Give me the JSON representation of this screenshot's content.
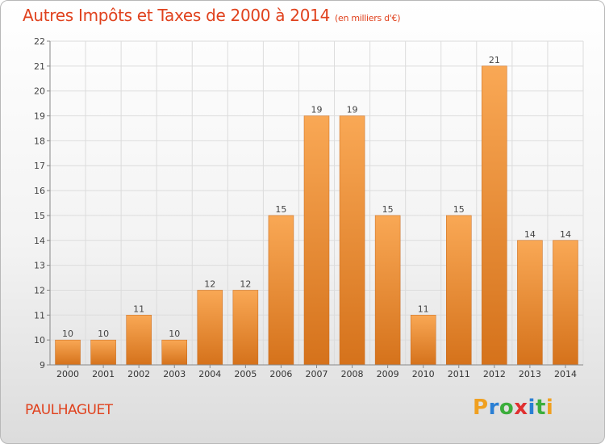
{
  "title": "Autres Impôts et Taxes de 2000 à 2014",
  "title_unit": "(en milliers d'€)",
  "town": "PAULHAGUET",
  "brand": {
    "letters": [
      "P",
      "r",
      "o",
      "x",
      "i",
      "t",
      "i"
    ],
    "colors": [
      "#f0a020",
      "#2a7fd4",
      "#3cae3c",
      "#e03030",
      "#2a7fd4",
      "#3cae3c",
      "#f0a020"
    ]
  },
  "colors": {
    "accent": "#e0421e",
    "bar_light": "#f8a550",
    "bar_dark": "#d6741c"
  },
  "chart_data": {
    "type": "bar",
    "categories": [
      "2000",
      "2001",
      "2002",
      "2003",
      "2004",
      "2005",
      "2006",
      "2007",
      "2008",
      "2009",
      "2010",
      "2011",
      "2012",
      "2013",
      "2014"
    ],
    "values": [
      10,
      10,
      11,
      10,
      12,
      12,
      15,
      19,
      19,
      15,
      11,
      15,
      21,
      14,
      14
    ],
    "ylim": [
      9,
      22
    ],
    "yticks": [
      9,
      10,
      11,
      12,
      13,
      14,
      15,
      16,
      17,
      18,
      19,
      20,
      21,
      22
    ],
    "grid": true,
    "xlabel": "",
    "ylabel": ""
  }
}
